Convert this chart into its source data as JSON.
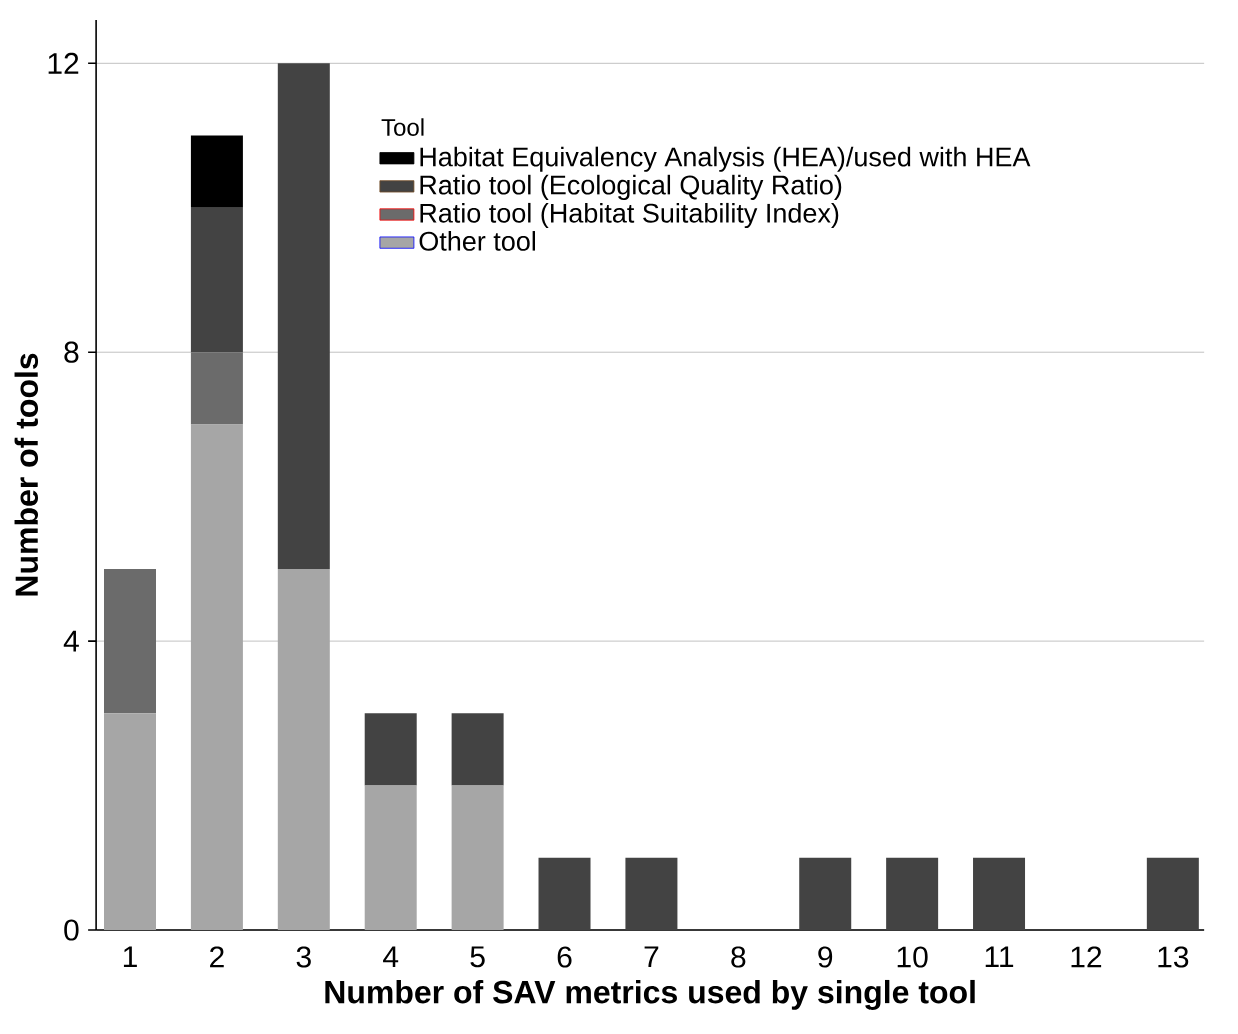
{
  "chart_data": {
    "type": "bar",
    "stacked": true,
    "xlabel": "Number of SAV metrics used by single tool",
    "ylabel": "Number of tools",
    "legend_title": "Tool",
    "legend": "top",
    "categories": [
      "1",
      "2",
      "3",
      "4",
      "5",
      "6",
      "7",
      "8",
      "9",
      "10",
      "11",
      "12",
      "13"
    ],
    "series": [
      {
        "name": "Other tool",
        "color": "#a6a6a6",
        "values": [
          3,
          7,
          5,
          2,
          2,
          0,
          0,
          0,
          0,
          0,
          0,
          0,
          0
        ]
      },
      {
        "name": "Ratio tool (Habitat Suitability Index)",
        "color": "#6b6b6b",
        "values": [
          2,
          1,
          0,
          0,
          0,
          0,
          0,
          0,
          0,
          0,
          0,
          0,
          0
        ]
      },
      {
        "name": "Ratio tool (Ecological Quality Ratio)",
        "color": "#434343",
        "values": [
          0,
          2,
          7,
          1,
          1,
          1,
          1,
          0,
          1,
          1,
          1,
          0,
          1
        ]
      },
      {
        "name": "Habitat Equivalency Analysis (HEA)/used with HEA",
        "color": "#000000",
        "values": [
          0,
          1,
          0,
          0,
          0,
          0,
          0,
          0,
          0,
          0,
          0,
          0,
          0
        ]
      }
    ],
    "ylim": [
      0,
      12.6
    ],
    "yticks": [
      0,
      4,
      8,
      12
    ],
    "grid": "y"
  }
}
